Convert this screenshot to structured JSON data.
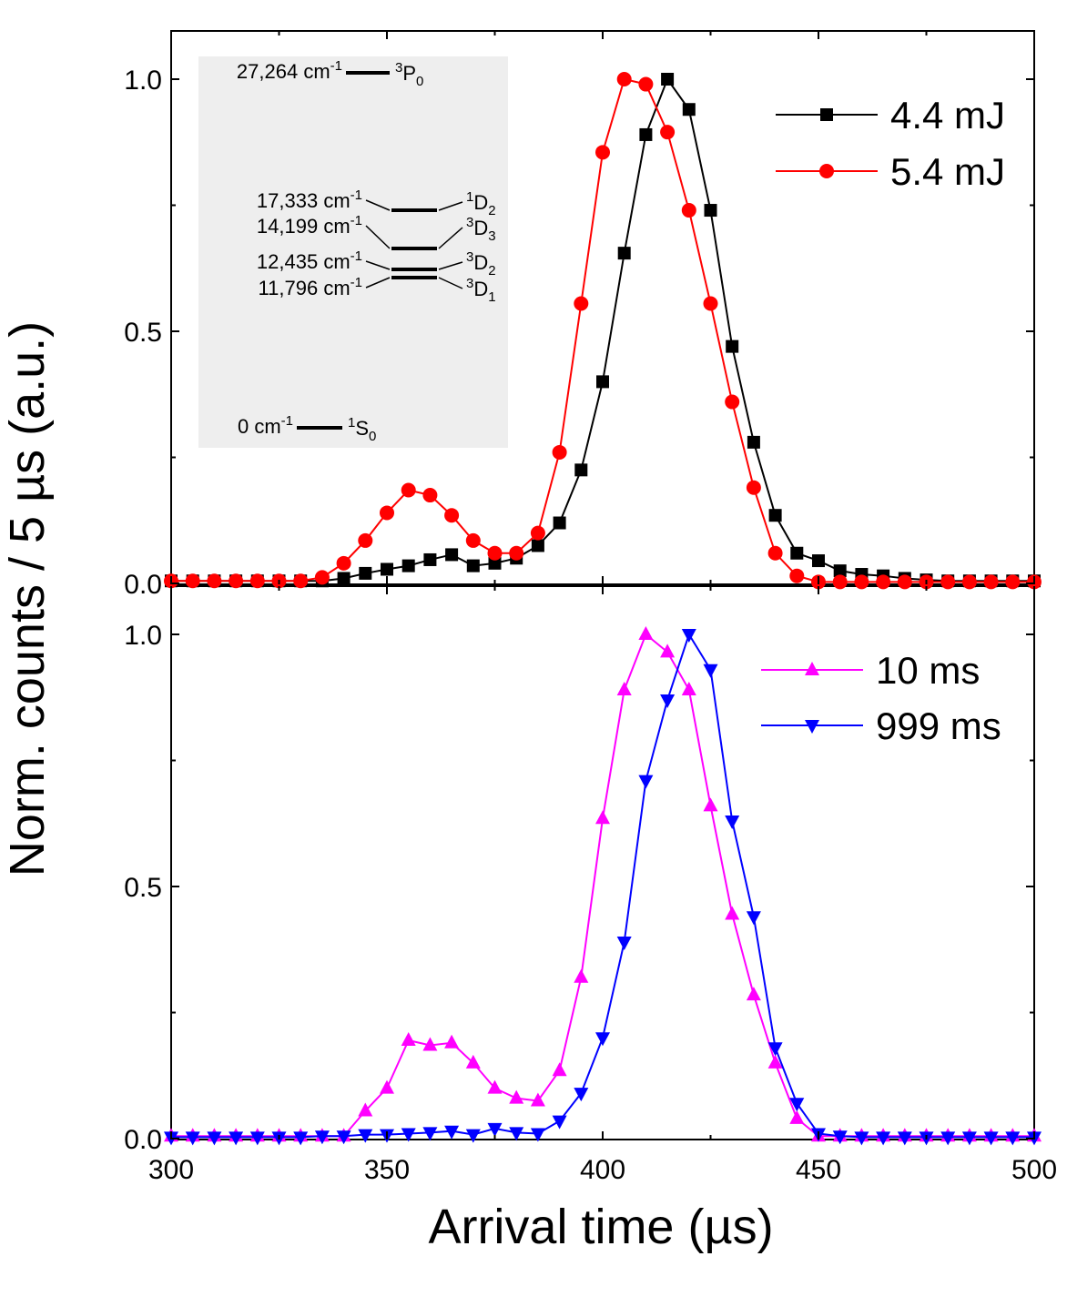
{
  "chart_data": {
    "type": "line",
    "xlabel": "Arrival time (µs)",
    "ylabel": "Norm. counts / 5 µs (a.u.)",
    "xlim": [
      300,
      500
    ],
    "x_ticks": [
      "300",
      "350",
      "400",
      "450",
      "500"
    ],
    "x": [
      300,
      305,
      310,
      315,
      320,
      325,
      330,
      335,
      340,
      345,
      350,
      355,
      360,
      365,
      370,
      375,
      380,
      385,
      390,
      395,
      400,
      405,
      410,
      415,
      420,
      425,
      430,
      435,
      440,
      445,
      450,
      455,
      460,
      465,
      470,
      475,
      480,
      485,
      490,
      495,
      500
    ],
    "panels": [
      {
        "ylim": [
          0,
          1.1
        ],
        "y_ticks": [
          "0.0",
          "0.5",
          "1.0"
        ],
        "series": [
          {
            "name": "4.4 mJ",
            "color": "#000000",
            "marker": "square",
            "values": [
              0.005,
              0.005,
              0.005,
              0.005,
              0.005,
              0.005,
              0.005,
              0.005,
              0.01,
              0.02,
              0.028,
              0.035,
              0.047,
              0.057,
              0.035,
              0.04,
              0.05,
              0.075,
              0.12,
              0.225,
              0.4,
              0.655,
              0.89,
              1.0,
              0.94,
              0.74,
              0.47,
              0.28,
              0.135,
              0.06,
              0.045,
              0.025,
              0.018,
              0.015,
              0.01,
              0.007,
              0.005,
              0.005,
              0.005,
              0.005,
              0.005
            ]
          },
          {
            "name": "5.4 mJ",
            "color": "#ff0000",
            "marker": "circle",
            "values": [
              0.005,
              0.005,
              0.005,
              0.005,
              0.005,
              0.005,
              0.005,
              0.012,
              0.04,
              0.085,
              0.14,
              0.185,
              0.175,
              0.135,
              0.085,
              0.06,
              0.06,
              0.1,
              0.26,
              0.555,
              0.855,
              1.0,
              0.99,
              0.895,
              0.74,
              0.555,
              0.36,
              0.19,
              0.06,
              0.015,
              0.003,
              0.003,
              0.003,
              0.003,
              0.003,
              0.003,
              0.003,
              0.003,
              0.003,
              0.003,
              0.003
            ]
          }
        ]
      },
      {
        "ylim": [
          0,
          1.1
        ],
        "y_ticks": [
          "0.0",
          "0.5",
          "1.0"
        ],
        "series": [
          {
            "name": "10 ms",
            "color": "#ff00ff",
            "marker": "triangle-up",
            "values": [
              0.005,
              0.005,
              0.005,
              0.005,
              0.005,
              0.005,
              0.005,
              0.005,
              0.005,
              0.055,
              0.1,
              0.195,
              0.185,
              0.19,
              0.15,
              0.1,
              0.08,
              0.075,
              0.135,
              0.32,
              0.635,
              0.89,
              1.0,
              0.965,
              0.89,
              0.66,
              0.445,
              0.285,
              0.15,
              0.04,
              0.005,
              0.005,
              0.005,
              0.005,
              0.005,
              0.005,
              0.005,
              0.005,
              0.005,
              0.005,
              0.005
            ]
          },
          {
            "name": "999 ms",
            "color": "#0000ff",
            "marker": "triangle-down",
            "values": [
              0.003,
              0.003,
              0.003,
              0.003,
              0.003,
              0.003,
              0.003,
              0.005,
              0.005,
              0.008,
              0.008,
              0.01,
              0.012,
              0.015,
              0.008,
              0.02,
              0.012,
              0.01,
              0.035,
              0.09,
              0.2,
              0.39,
              0.71,
              0.87,
              1.0,
              0.93,
              0.63,
              0.44,
              0.18,
              0.07,
              0.01,
              0.005,
              0.003,
              0.003,
              0.003,
              0.003,
              0.003,
              0.003,
              0.003,
              0.003,
              0.003
            ]
          }
        ]
      }
    ],
    "inset": {
      "levels": [
        {
          "energy": "27,264 cm",
          "sup": "-1",
          "term_pre": "3",
          "term": "P",
          "term_sub": "0"
        },
        {
          "energy": "17,333 cm",
          "sup": "-1",
          "term_pre": "1",
          "term": "D",
          "term_sub": "2"
        },
        {
          "energy": "14,199 cm",
          "sup": "-1",
          "term_pre": "3",
          "term": "D",
          "term_sub": "3"
        },
        {
          "energy": "12,435 cm",
          "sup": "-1",
          "term_pre": "3",
          "term": "D",
          "term_sub": "2"
        },
        {
          "energy": "11,796 cm",
          "sup": "-1",
          "term_pre": "3",
          "term": "D",
          "term_sub": "1"
        },
        {
          "energy": "0 cm",
          "sup": "-1",
          "term_pre": "1",
          "term": "S",
          "term_sub": "0"
        }
      ]
    }
  }
}
